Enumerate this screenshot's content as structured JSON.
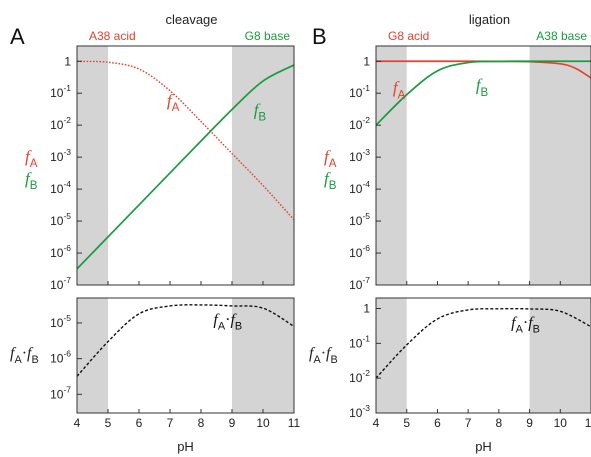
{
  "colors": {
    "fA": "#e4412e",
    "fB": "#1a9b3c",
    "product": "#111111",
    "shade": "#d4d4d4",
    "frame": "#333333"
  },
  "x_axis": {
    "label": "pH",
    "ticks": [
      4,
      5,
      6,
      7,
      8,
      9,
      10,
      11
    ]
  },
  "chart_data": [
    {
      "type": "line",
      "panel": "A",
      "plot": "top",
      "title": "cleavage",
      "header_left": "A38 acid",
      "header_right": "G8 base",
      "y_scale": "log",
      "xlim": [
        4,
        11
      ],
      "ylim": [
        1e-07,
        3
      ],
      "ytick_labels": [
        {
          "exp": 0,
          "base": "1",
          "sup": ""
        },
        {
          "exp": -1,
          "base": "10",
          "sup": "-1"
        },
        {
          "exp": -2,
          "base": "10",
          "sup": "-2"
        },
        {
          "exp": -3,
          "base": "10",
          "sup": "-3"
        },
        {
          "exp": -4,
          "base": "10",
          "sup": "-4"
        },
        {
          "exp": -5,
          "base": "10",
          "sup": "-5"
        },
        {
          "exp": -6,
          "base": "10",
          "sup": "-6"
        },
        {
          "exp": -7,
          "base": "10",
          "sup": "-7"
        }
      ],
      "shaded_ph_ranges": [
        [
          4,
          5
        ],
        [
          9,
          11
        ]
      ],
      "ylabel": {
        "a_letter": "f",
        "a_sub": "A",
        "b_letter": "f",
        "b_sub": "B"
      },
      "series": [
        {
          "name": "fA",
          "style": "dotted",
          "color": "#e4412e",
          "x": [
            4,
            5,
            6,
            7,
            8,
            9,
            10,
            11
          ],
          "y": [
            0.99,
            0.93,
            0.57,
            0.12,
            0.013,
            0.0013,
            0.00013,
            1.1e-05
          ]
        },
        {
          "name": "fB",
          "style": "solid",
          "color": "#1a9b3c",
          "x": [
            4,
            5,
            6,
            7,
            8,
            9,
            10,
            11
          ],
          "y": [
            3.2e-07,
            3.2e-06,
            3.2e-05,
            0.00032,
            0.0032,
            0.031,
            0.24,
            0.76
          ]
        }
      ],
      "annotations": [
        {
          "letter": "f",
          "sub": "A",
          "color": "#e4412e",
          "x": 6.9,
          "y": 0.04
        },
        {
          "letter": "f",
          "sub": "B",
          "color": "#1a9b3c",
          "x": 9.7,
          "y": 0.02
        }
      ]
    },
    {
      "type": "line",
      "panel": "A",
      "plot": "bottom",
      "y_scale": "log",
      "xlim": [
        4,
        11
      ],
      "ylim": [
        3e-08,
        5e-05
      ],
      "ytick_labels": [
        {
          "exp": -5,
          "base": "10",
          "sup": "-5"
        },
        {
          "exp": -6,
          "base": "10",
          "sup": "-6"
        },
        {
          "exp": -7,
          "base": "10",
          "sup": "-7"
        }
      ],
      "shaded_ph_ranges": [
        [
          4,
          5
        ],
        [
          9,
          11
        ]
      ],
      "ylabel": {
        "letter_a": "f",
        "sub_a": "A",
        "dot": "·",
        "letter_b": "f",
        "sub_b": "B"
      },
      "series": [
        {
          "name": "fA·fB",
          "style": "dashed",
          "color": "#111111",
          "x": [
            4,
            5,
            6,
            7,
            8,
            9,
            10,
            11
          ],
          "y": [
            3.2e-07,
            3e-06,
            1.8e-05,
            3e-05,
            3.2e-05,
            3e-05,
            2.6e-05,
            8e-06
          ]
        }
      ],
      "annotations": [
        {
          "letter_a": "f",
          "sub_a": "A",
          "dot": "·",
          "letter_b": "f",
          "sub_b": "B",
          "x": 8.4,
          "y": 9e-06
        }
      ]
    },
    {
      "type": "line",
      "panel": "B",
      "plot": "top",
      "title": "ligation",
      "header_left": "G8 acid",
      "header_right": "A38 base",
      "y_scale": "log",
      "xlim": [
        4,
        11
      ],
      "ylim": [
        1e-07,
        3
      ],
      "ytick_labels": [
        {
          "exp": 0,
          "base": "1",
          "sup": ""
        },
        {
          "exp": -1,
          "base": "10",
          "sup": "-1"
        },
        {
          "exp": -2,
          "base": "10",
          "sup": "-2"
        },
        {
          "exp": -3,
          "base": "10",
          "sup": "-3"
        },
        {
          "exp": -4,
          "base": "10",
          "sup": "-4"
        },
        {
          "exp": -5,
          "base": "10",
          "sup": "-5"
        },
        {
          "exp": -6,
          "base": "10",
          "sup": "-6"
        },
        {
          "exp": -7,
          "base": "10",
          "sup": "-7"
        }
      ],
      "shaded_ph_ranges": [
        [
          4,
          5
        ],
        [
          9,
          11
        ]
      ],
      "ylabel": {
        "a_letter": "f",
        "a_sub": "A",
        "b_letter": "f",
        "b_sub": "B"
      },
      "series": [
        {
          "name": "fA",
          "style": "solid",
          "color": "#e4412e",
          "x": [
            4,
            5,
            6,
            7,
            8,
            9,
            10,
            10.5,
            11
          ],
          "y": [
            1,
            1,
            1,
            1,
            0.99,
            0.97,
            0.83,
            0.6,
            0.3
          ]
        },
        {
          "name": "fB",
          "style": "solid",
          "color": "#1a9b3c",
          "x": [
            4,
            5,
            6,
            7,
            8,
            9,
            10,
            11
          ],
          "y": [
            0.01,
            0.09,
            0.5,
            0.91,
            0.99,
            1,
            1,
            1
          ]
        }
      ],
      "annotations": [
        {
          "letter": "f",
          "sub": "A",
          "color": "#e4412e",
          "x": 4.55,
          "y": 0.1
        },
        {
          "letter": "f",
          "sub": "B",
          "color": "#1a9b3c",
          "x": 7.25,
          "y": 0.12
        }
      ]
    },
    {
      "type": "line",
      "panel": "B",
      "plot": "bottom",
      "y_scale": "log",
      "xlim": [
        4,
        11
      ],
      "ylim": [
        0.001,
        2
      ],
      "ytick_labels": [
        {
          "exp": 0,
          "base": "1",
          "sup": ""
        },
        {
          "exp": -1,
          "base": "10",
          "sup": "-1"
        },
        {
          "exp": -2,
          "base": "10",
          "sup": "-2"
        },
        {
          "exp": -3,
          "base": "10",
          "sup": "-3"
        }
      ],
      "shaded_ph_ranges": [
        [
          4,
          5
        ],
        [
          9,
          11
        ]
      ],
      "ylabel": {
        "letter_a": "f",
        "sub_a": "A",
        "dot": "·",
        "letter_b": "f",
        "sub_b": "B"
      },
      "series": [
        {
          "name": "fA·fB",
          "style": "dashed",
          "color": "#111111",
          "x": [
            4,
            5,
            6,
            7,
            8,
            9,
            10,
            11
          ],
          "y": [
            0.01,
            0.09,
            0.5,
            0.91,
            0.98,
            0.97,
            0.83,
            0.3
          ]
        }
      ],
      "annotations": [
        {
          "letter_a": "f",
          "sub_a": "A",
          "dot": "·",
          "letter_b": "f",
          "sub_b": "B",
          "x": 8.4,
          "y": 0.28
        }
      ]
    }
  ]
}
